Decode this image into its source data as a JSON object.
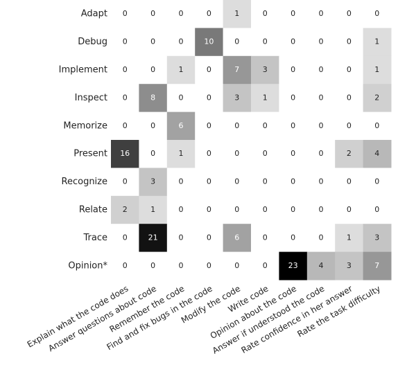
{
  "chart_data": {
    "type": "heatmap",
    "title": "",
    "xlabel": "",
    "ylabel": "",
    "rows": [
      "Adapt",
      "Debug",
      "Implement",
      "Inspect",
      "Memorize",
      "Present",
      "Recognize",
      "Relate",
      "Trace",
      "Opinion*"
    ],
    "columns": [
      "Explain what the code does",
      "Answer questions about code",
      "Remember the code",
      "Find and fix bugs in the code",
      "Modify the code",
      "Write code",
      "Opinion about the code",
      "Answer if understood the code",
      "Rate confidence in her answer",
      "Rate the task difficulty"
    ],
    "values": [
      [
        0,
        0,
        0,
        0,
        1,
        0,
        0,
        0,
        0,
        0
      ],
      [
        0,
        0,
        0,
        10,
        0,
        0,
        0,
        0,
        0,
        1
      ],
      [
        0,
        0,
        1,
        0,
        7,
        3,
        0,
        0,
        0,
        1
      ],
      [
        0,
        8,
        0,
        0,
        3,
        1,
        0,
        0,
        0,
        2
      ],
      [
        0,
        0,
        6,
        0,
        0,
        0,
        0,
        0,
        0,
        0
      ],
      [
        16,
        0,
        1,
        0,
        0,
        0,
        0,
        0,
        2,
        4
      ],
      [
        0,
        3,
        0,
        0,
        0,
        0,
        0,
        0,
        0,
        0
      ],
      [
        2,
        1,
        0,
        0,
        0,
        0,
        0,
        0,
        0,
        0
      ],
      [
        0,
        21,
        0,
        0,
        6,
        0,
        0,
        0,
        1,
        3
      ],
      [
        0,
        0,
        0,
        0,
        0,
        0,
        23,
        4,
        3,
        7
      ]
    ],
    "color_scale": "greys",
    "vmin": 0,
    "vmax": 23,
    "grid": false,
    "legend": "none"
  }
}
